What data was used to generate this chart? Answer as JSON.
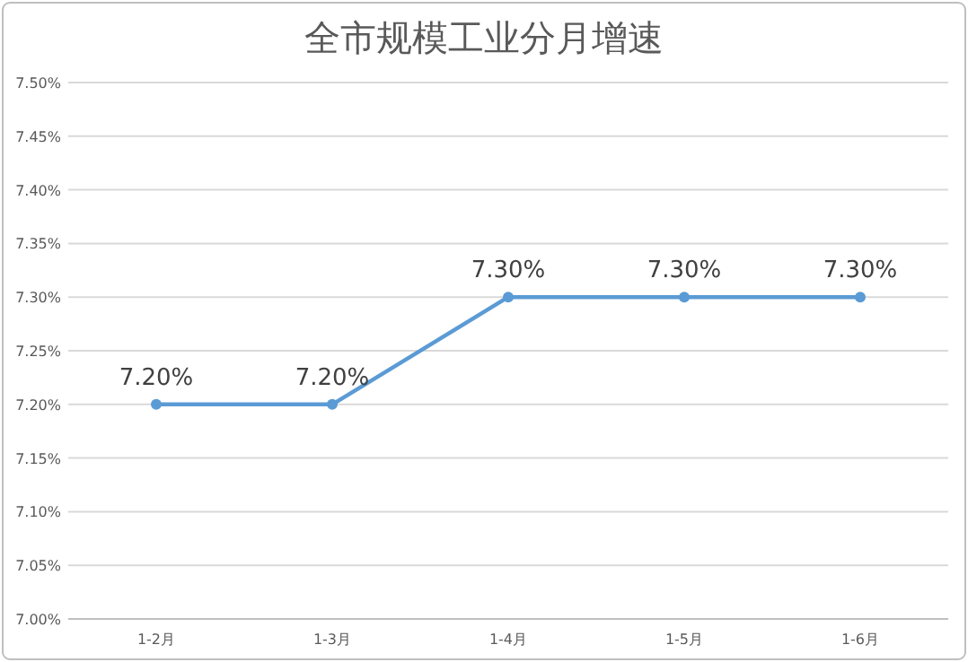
{
  "chart_data": {
    "type": "line",
    "title": "全市规模工业分月增速",
    "categories": [
      "1-2月",
      "1-3月",
      "1-4月",
      "1-5月",
      "1-6月"
    ],
    "series": [
      {
        "color": "#5b9bd5",
        "values": [
          7.2,
          7.2,
          7.3,
          7.3,
          7.3
        ],
        "value_labels": [
          "7.20%",
          "7.20%",
          "7.30%",
          "7.30%",
          "7.30%"
        ]
      }
    ],
    "ylim": [
      7.0,
      7.5
    ],
    "yticks": [
      {
        "value": 7.0,
        "label": "7.00%"
      },
      {
        "value": 7.05,
        "label": "7.05%"
      },
      {
        "value": 7.1,
        "label": "7.10%"
      },
      {
        "value": 7.15,
        "label": "7.15%"
      },
      {
        "value": 7.2,
        "label": "7.20%"
      },
      {
        "value": 7.25,
        "label": "7.25%"
      },
      {
        "value": 7.3,
        "label": "7.30%"
      },
      {
        "value": 7.35,
        "label": "7.35%"
      },
      {
        "value": 7.4,
        "label": "7.40%"
      },
      {
        "value": 7.45,
        "label": "7.45%"
      },
      {
        "value": 7.5,
        "label": "7.50%"
      }
    ],
    "grid": "y",
    "marker": "circle",
    "line_style": "solid"
  }
}
